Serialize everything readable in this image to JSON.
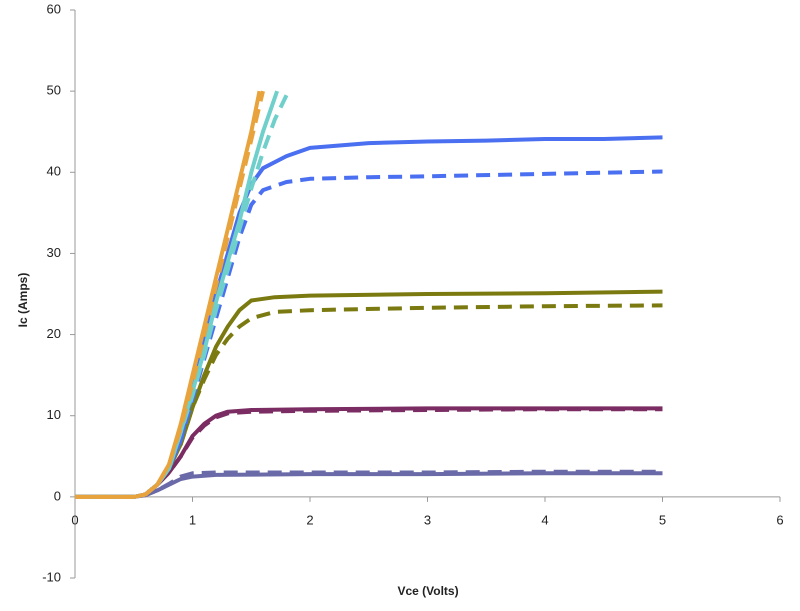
{
  "chart_data": {
    "type": "line",
    "x_label": "Vce (Volts)",
    "y_label": "Ic (Amps)",
    "xlim": [
      0,
      6
    ],
    "xticks": [
      0,
      1,
      2,
      3,
      4,
      5,
      6
    ],
    "ylim": [
      -10,
      60
    ],
    "yticks": [
      -10,
      0,
      10,
      20,
      30,
      40,
      50,
      60
    ],
    "grid": false,
    "series": [
      {
        "color": "#6a6aa8",
        "dash": false,
        "x": [
          0,
          0.5,
          0.6,
          0.7,
          0.8,
          0.9,
          1,
          1.2,
          2,
          3,
          4,
          5
        ],
        "values": [
          0,
          0,
          0.2,
          0.8,
          1.5,
          2.2,
          2.5,
          2.7,
          2.8,
          2.8,
          2.9,
          2.9
        ]
      },
      {
        "color": "#6a6aa8",
        "dash": true,
        "x": [
          0,
          0.5,
          0.6,
          0.7,
          0.8,
          0.9,
          1,
          1.2,
          2,
          3,
          4,
          5
        ],
        "values": [
          0,
          0,
          0.2,
          0.8,
          1.6,
          2.5,
          2.9,
          3,
          3,
          3,
          3.1,
          3.1
        ]
      },
      {
        "color": "#7b2d63",
        "dash": false,
        "x": [
          0,
          0.5,
          0.6,
          0.7,
          0.8,
          0.9,
          1,
          1.1,
          1.2,
          1.3,
          1.5,
          2,
          3,
          4,
          5
        ],
        "values": [
          0,
          0,
          0.3,
          1.5,
          3,
          5,
          7.5,
          9,
          10,
          10.5,
          10.7,
          10.8,
          10.9,
          10.9,
          10.9
        ]
      },
      {
        "color": "#7b2d63",
        "dash": true,
        "x": [
          0,
          0.5,
          0.6,
          0.7,
          0.8,
          0.9,
          1,
          1.1,
          1.2,
          1.3,
          1.5,
          2,
          3,
          4,
          5
        ],
        "values": [
          0,
          0,
          0.3,
          1.5,
          3,
          5,
          7.3,
          8.8,
          9.8,
          10.3,
          10.5,
          10.6,
          10.7,
          10.8,
          10.8
        ]
      },
      {
        "color": "#7a7a10",
        "dash": false,
        "x": [
          0,
          0.5,
          0.6,
          0.7,
          0.8,
          0.9,
          1,
          1.1,
          1.2,
          1.3,
          1.4,
          1.5,
          1.7,
          2,
          3,
          4,
          5
        ],
        "values": [
          0,
          0,
          0.3,
          1.5,
          3.5,
          6.5,
          11,
          15,
          18.5,
          21,
          23,
          24.2,
          24.6,
          24.8,
          25,
          25.1,
          25.3
        ]
      },
      {
        "color": "#7a7a10",
        "dash": true,
        "x": [
          0,
          0.5,
          0.6,
          0.7,
          0.8,
          0.9,
          1,
          1.1,
          1.2,
          1.3,
          1.4,
          1.5,
          1.7,
          2,
          3,
          4,
          5
        ],
        "values": [
          0,
          0,
          0.3,
          1.5,
          3.5,
          6.5,
          11,
          14.5,
          17.5,
          19.5,
          21,
          22,
          22.8,
          23,
          23.3,
          23.5,
          23.6
        ]
      },
      {
        "color": "#4a6ff0",
        "dash": false,
        "x": [
          0,
          0.5,
          0.6,
          0.7,
          0.8,
          0.9,
          1,
          1.1,
          1.2,
          1.3,
          1.4,
          1.5,
          1.6,
          1.8,
          2,
          2.5,
          3,
          3.5,
          4,
          4.5,
          5
        ],
        "values": [
          0,
          0,
          0.3,
          1.5,
          3.5,
          7,
          13,
          19,
          25,
          30,
          35,
          38.5,
          40.5,
          42,
          43,
          43.6,
          43.8,
          43.9,
          44.1,
          44.1,
          44.3
        ]
      },
      {
        "color": "#4a6ff0",
        "dash": true,
        "x": [
          0,
          0.5,
          0.6,
          0.7,
          0.8,
          0.9,
          1,
          1.2,
          1.3,
          1.4,
          1.5,
          1.6,
          1.8,
          2,
          2.5,
          3,
          4,
          5
        ],
        "values": [
          0,
          0,
          0.3,
          1.5,
          3.5,
          7,
          12,
          22,
          27,
          32,
          36,
          37.8,
          38.8,
          39.2,
          39.4,
          39.5,
          39.8,
          40.1
        ]
      },
      {
        "color": "#6fcfca",
        "dash": false,
        "x": [
          0,
          0.5,
          0.6,
          0.7,
          0.8,
          0.9,
          1,
          1.1,
          1.2,
          1.3,
          1.4,
          1.5,
          1.6,
          1.72
        ],
        "values": [
          0,
          0,
          0.3,
          1.5,
          3.5,
          8,
          13,
          18,
          24,
          29,
          34,
          40,
          45,
          50
        ]
      },
      {
        "color": "#6fcfca",
        "dash": true,
        "x": [
          0,
          0.5,
          0.6,
          0.7,
          0.8,
          0.9,
          1,
          1.1,
          1.2,
          1.3,
          1.4,
          1.5,
          1.6,
          1.7,
          1.8
        ],
        "values": [
          0,
          0,
          0.3,
          1.5,
          3.5,
          8,
          12.5,
          17.5,
          23,
          28,
          33,
          38,
          42.5,
          46.5,
          49.5
        ]
      },
      {
        "color": "#e8a33d",
        "dash": false,
        "x": [
          0,
          0.5,
          0.6,
          0.7,
          0.8,
          0.9,
          1,
          1.1,
          1.2,
          1.3,
          1.4,
          1.5,
          1.57
        ],
        "values": [
          0,
          0,
          0.3,
          1.5,
          4,
          9,
          15,
          21,
          27,
          33,
          39,
          45,
          50
        ]
      },
      {
        "color": "#e8a33d",
        "dash": true,
        "x": [
          0,
          0.5,
          0.6,
          0.7,
          0.8,
          0.9,
          1,
          1.1,
          1.2,
          1.3,
          1.4,
          1.5,
          1.6
        ],
        "values": [
          0,
          0,
          0.3,
          1.5,
          4,
          8.5,
          14,
          20,
          26,
          32,
          38,
          44,
          50
        ]
      }
    ]
  }
}
